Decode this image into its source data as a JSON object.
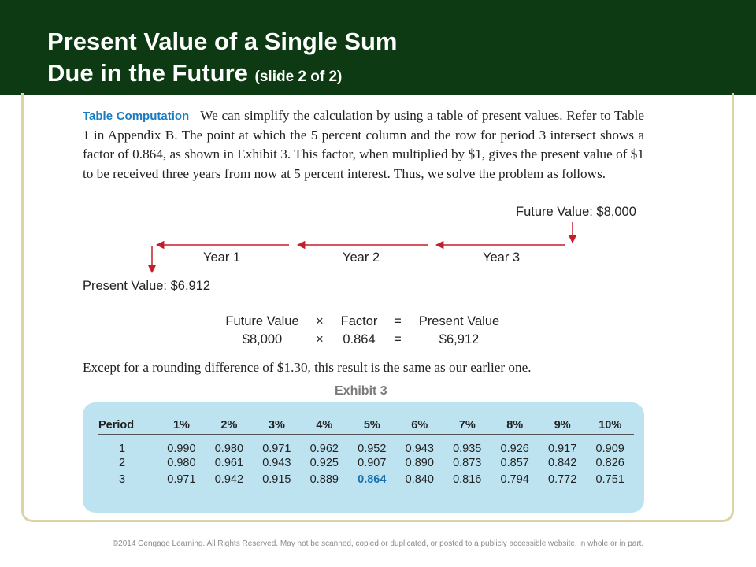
{
  "slide": {
    "title_line1": "Present Value of a Single Sum",
    "title_line2": "Due in the Future",
    "title_suffix": "(slide 2 of 2)"
  },
  "content": {
    "lead": "Table Computation",
    "paragraph": "We can simplify the calculation by using a table of present values. Refer to Table 1 in Appendix B. The point at which the 5 percent column and the row for period 3 intersect shows a factor of 0.864, as shown in Exhibit 3. This factor, when multiplied by $1, gives the present value of $1 to be received three years from now at 5 percent interest. Thus, we solve the problem as follows.",
    "future_value_label": "Future Value: $8,000",
    "years": [
      "Year 1",
      "Year 2",
      "Year 3"
    ],
    "present_value_label": "Present Value: $6,912",
    "equation": {
      "headers": [
        "Future Value",
        "×",
        "Factor",
        "=",
        "Present Value"
      ],
      "values": [
        "$8,000",
        "×",
        "0.864",
        "=",
        "$6,912"
      ]
    },
    "closing": "Except for a rounding difference of $1.30, this result is the same as our earlier one."
  },
  "exhibit": {
    "label": "Exhibit 3",
    "columns": [
      "Period",
      "1%",
      "2%",
      "3%",
      "4%",
      "5%",
      "6%",
      "7%",
      "8%",
      "9%",
      "10%"
    ],
    "rows": [
      [
        "1",
        "0.990",
        "0.980",
        "0.971",
        "0.962",
        "0.952",
        "0.943",
        "0.935",
        "0.926",
        "0.917",
        "0.909"
      ],
      [
        "2",
        "0.980",
        "0.961",
        "0.943",
        "0.925",
        "0.907",
        "0.890",
        "0.873",
        "0.857",
        "0.842",
        "0.826"
      ],
      [
        "3",
        "0.971",
        "0.942",
        "0.915",
        "0.889",
        "0.864",
        "0.840",
        "0.816",
        "0.794",
        "0.772",
        "0.751"
      ]
    ],
    "highlight": {
      "row": 2,
      "col": 5
    }
  },
  "colors": {
    "header_bg": "#0d3a12",
    "frame": "#dcd4a6",
    "arrow": "#c41e2a",
    "lead_text": "#1a7cc1",
    "exhibit_bg": "#bde3f1",
    "highlight_text": "#1a6fb0"
  },
  "footer": "©2014 Cengage Learning. All Rights Reserved. May not be scanned, copied or duplicated, or posted to a publicly accessible website, in whole or in part."
}
